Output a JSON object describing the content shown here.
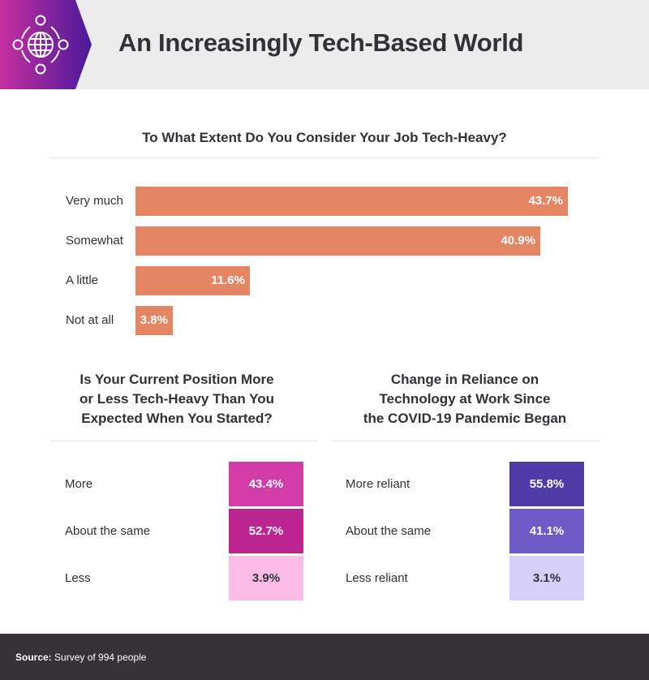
{
  "header": {
    "title": "An Increasingly Tech-Based World",
    "icon": "globe-network-icon",
    "gradient": [
      "#c62fa0",
      "#4a1a9a"
    ]
  },
  "chart_data": [
    {
      "type": "bar",
      "orientation": "horizontal",
      "title": "To What Extent Do You Consider Your Job Tech-Heavy?",
      "categories": [
        "Very much",
        "Somewhat",
        "A little",
        "Not at all"
      ],
      "values": [
        43.7,
        40.9,
        11.6,
        3.8
      ],
      "labels": [
        "43.7%",
        "40.9%",
        "11.6%",
        "3.8%"
      ],
      "unit": "%",
      "color": "#e48564",
      "xlim": [
        0,
        43.7
      ]
    },
    {
      "type": "table",
      "title": "Is Your Current Position More or Less Tech-Heavy Than You Expected When You Started?",
      "categories": [
        "More",
        "About the same",
        "Less"
      ],
      "values": [
        43.4,
        52.7,
        3.9
      ],
      "labels": [
        "43.4%",
        "52.7%",
        "3.9%"
      ],
      "colors": [
        "#d23ca6",
        "#bc2490",
        "#fbbde8"
      ],
      "text_colors": [
        "#ffffff",
        "#ffffff",
        "#333036"
      ]
    },
    {
      "type": "table",
      "title": "Change in Reliance on Technology at Work Since the COVID-19 Pandemic Began",
      "categories": [
        "More reliant",
        "About the same",
        "Less reliant"
      ],
      "values": [
        55.8,
        41.1,
        3.1
      ],
      "labels": [
        "55.8%",
        "41.1%",
        "3.1%"
      ],
      "colors": [
        "#4e3ba8",
        "#6e5bc8",
        "#d6d0fa"
      ],
      "text_colors": [
        "#ffffff",
        "#ffffff",
        "#333036"
      ]
    }
  ],
  "titles": {
    "t2_lines": [
      "Is Your Current Position More",
      "or Less Tech-Heavy Than You",
      "Expected When You Started?"
    ],
    "t3_lines": [
      "Change in Reliance on",
      "Technology at Work Since",
      "the COVID-19 Pandemic Began"
    ]
  },
  "footer": {
    "source_label": "Source:",
    "source_text": " Survey of 994 people"
  }
}
